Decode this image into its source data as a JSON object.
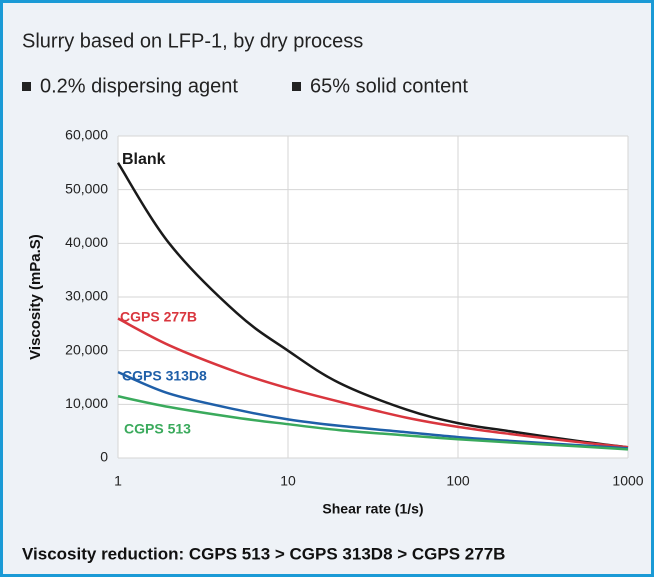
{
  "chart_data": {
    "type": "line",
    "title": "Slurry based on LFP-1, by dry process",
    "notes": [
      "0.2% dispersing agent",
      "65% solid content"
    ],
    "footer": "Viscosity reduction: CGPS 513 > CGPS 313D8 > CGPS 277B",
    "x_label": "Shear rate (1/s)",
    "y_label": "Viscosity (mPa.S)",
    "x": [
      1,
      2,
      5,
      10,
      20,
      50,
      100,
      200,
      500,
      1000
    ],
    "xlog": true,
    "xlim": [
      1,
      1000
    ],
    "xticks": [
      1,
      10,
      100,
      1000
    ],
    "ylim": [
      0,
      60000
    ],
    "yticks": [
      0,
      {
        "value": 10000,
        "label": "10,000"
      },
      {
        "value": 20000,
        "label": "20,000"
      },
      {
        "value": 30000,
        "label": "30,000"
      },
      {
        "value": 40000,
        "label": "40,000"
      },
      {
        "value": 50000,
        "label": "50,000"
      },
      {
        "value": 60000,
        "label": "60,000"
      }
    ],
    "grid": true,
    "series": [
      {
        "name": "Blank",
        "color": "#1a1a1a",
        "values": [
          55000,
          40000,
          27000,
          20000,
          14000,
          9000,
          6500,
          5000,
          3200,
          2000
        ]
      },
      {
        "name": "CGPS 277B",
        "color": "#d9363e",
        "values": [
          26000,
          21000,
          16000,
          13000,
          10500,
          7500,
          5800,
          4500,
          3000,
          2000
        ]
      },
      {
        "name": "CGPS 313D8",
        "color": "#1f5fa8",
        "values": [
          16000,
          12000,
          9000,
          7200,
          6000,
          4800,
          3900,
          3200,
          2400,
          1800
        ]
      },
      {
        "name": "CGPS 513",
        "color": "#3aaa5c",
        "values": [
          11500,
          9500,
          7500,
          6300,
          5200,
          4200,
          3500,
          2900,
          2200,
          1600
        ]
      }
    ]
  }
}
